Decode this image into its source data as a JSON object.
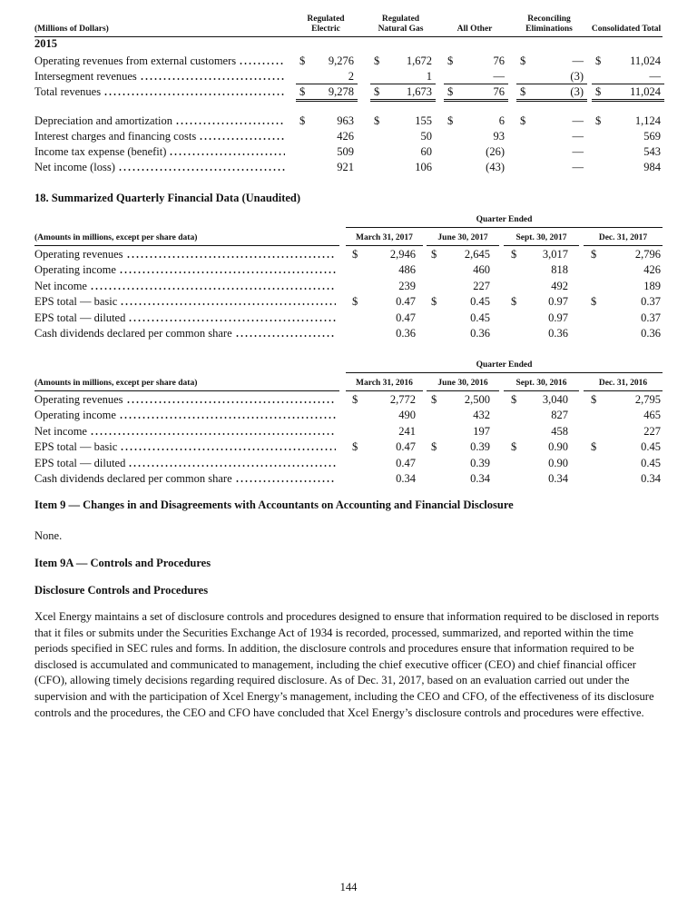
{
  "segment_table": {
    "headers": [
      "(Millions of Dollars)",
      "Regulated Electric",
      "Regulated Natural Gas",
      "All Other",
      "Reconciling Eliminations",
      "Consolidated Total"
    ],
    "currency": "$",
    "year": "2015",
    "rows": [
      {
        "label": "Operating revenues from external customers",
        "dollar": true,
        "values": [
          "9,276",
          "1,672",
          "76",
          "—",
          "11,024"
        ]
      },
      {
        "label": "Intersegment revenues",
        "dollar": false,
        "values": [
          "2",
          "1",
          "—",
          "(3)",
          "—"
        ]
      },
      {
        "label": "Total revenues",
        "dollar": true,
        "total": true,
        "values": [
          "9,278",
          "1,673",
          "76",
          "(3)",
          "11,024"
        ]
      },
      {
        "label": "Depreciation and amortization",
        "dollar": true,
        "values": [
          "963",
          "155",
          "6",
          "—",
          "1,124"
        ]
      },
      {
        "label": "Interest charges and financing costs",
        "dollar": false,
        "values": [
          "426",
          "50",
          "93",
          "—",
          "569"
        ]
      },
      {
        "label": "Income tax expense (benefit)",
        "dollar": false,
        "values": [
          "509",
          "60",
          "(26)",
          "—",
          "543"
        ]
      },
      {
        "label": "Net income (loss)",
        "dollar": false,
        "values": [
          "921",
          "106",
          "(43)",
          "—",
          "984"
        ]
      }
    ]
  },
  "quarterly": {
    "heading": "18.  Summarized Quarterly Financial Data (Unaudited)",
    "currency": "$",
    "tables": [
      {
        "super_header": "Quarter Ended",
        "headers": [
          "(Amounts in millions, except per share data)",
          "March 31, 2017",
          "June 30, 2017",
          "Sept. 30, 2017",
          "Dec. 31, 2017"
        ],
        "rows": [
          {
            "label": "Operating revenues",
            "dollar": true,
            "values": [
              "2,946",
              "2,645",
              "3,017",
              "2,796"
            ]
          },
          {
            "label": "Operating income",
            "dollar": false,
            "values": [
              "486",
              "460",
              "818",
              "426"
            ]
          },
          {
            "label": "Net income",
            "dollar": false,
            "values": [
              "239",
              "227",
              "492",
              "189"
            ]
          },
          {
            "label": "EPS total — basic",
            "dollar": true,
            "values": [
              "0.47",
              "0.45",
              "0.97",
              "0.37"
            ]
          },
          {
            "label": "EPS total — diluted",
            "dollar": false,
            "values": [
              "0.47",
              "0.45",
              "0.97",
              "0.37"
            ]
          },
          {
            "label": "Cash dividends declared per common share",
            "dollar": false,
            "values": [
              "0.36",
              "0.36",
              "0.36",
              "0.36"
            ]
          }
        ]
      },
      {
        "super_header": "Quarter Ended",
        "headers": [
          "(Amounts in millions, except per share data)",
          "March 31, 2016",
          "June 30, 2016",
          "Sept. 30, 2016",
          "Dec. 31, 2016"
        ],
        "rows": [
          {
            "label": "Operating revenues",
            "dollar": true,
            "values": [
              "2,772",
              "2,500",
              "3,040",
              "2,795"
            ]
          },
          {
            "label": "Operating income",
            "dollar": false,
            "values": [
              "490",
              "432",
              "827",
              "465"
            ]
          },
          {
            "label": "Net income",
            "dollar": false,
            "values": [
              "241",
              "197",
              "458",
              "227"
            ]
          },
          {
            "label": "EPS total — basic",
            "dollar": true,
            "values": [
              "0.47",
              "0.39",
              "0.90",
              "0.45"
            ]
          },
          {
            "label": "EPS total — diluted",
            "dollar": false,
            "values": [
              "0.47",
              "0.39",
              "0.90",
              "0.45"
            ]
          },
          {
            "label": "Cash dividends declared per common share",
            "dollar": false,
            "values": [
              "0.34",
              "0.34",
              "0.34",
              "0.34"
            ]
          }
        ]
      }
    ]
  },
  "item9": {
    "heading": "Item 9 — Changes in and Disagreements with Accountants on Accounting and Financial Disclosure",
    "text": "None."
  },
  "item9a": {
    "heading": "Item 9A — Controls and Procedures",
    "subheading": "Disclosure Controls and Procedures",
    "paragraph": "Xcel Energy maintains a set of disclosure controls and procedures designed to ensure that information required to be disclosed in reports that it files or submits under the Securities Exchange Act of 1934 is recorded, processed, summarized, and reported within the time periods specified in SEC rules and forms.  In addition, the disclosure controls and procedures ensure that information required to be disclosed is accumulated and communicated to management, including the chief executive officer (CEO) and chief financial officer (CFO), allowing timely decisions regarding required disclosure.  As of Dec. 31, 2017, based on an evaluation carried out under the supervision and with the participation of Xcel Energy’s management, including the CEO and CFO, of the effectiveness of its disclosure controls and the procedures, the CEO and CFO have concluded that Xcel Energy’s disclosure controls and procedures were effective."
  },
  "page_number": "144"
}
